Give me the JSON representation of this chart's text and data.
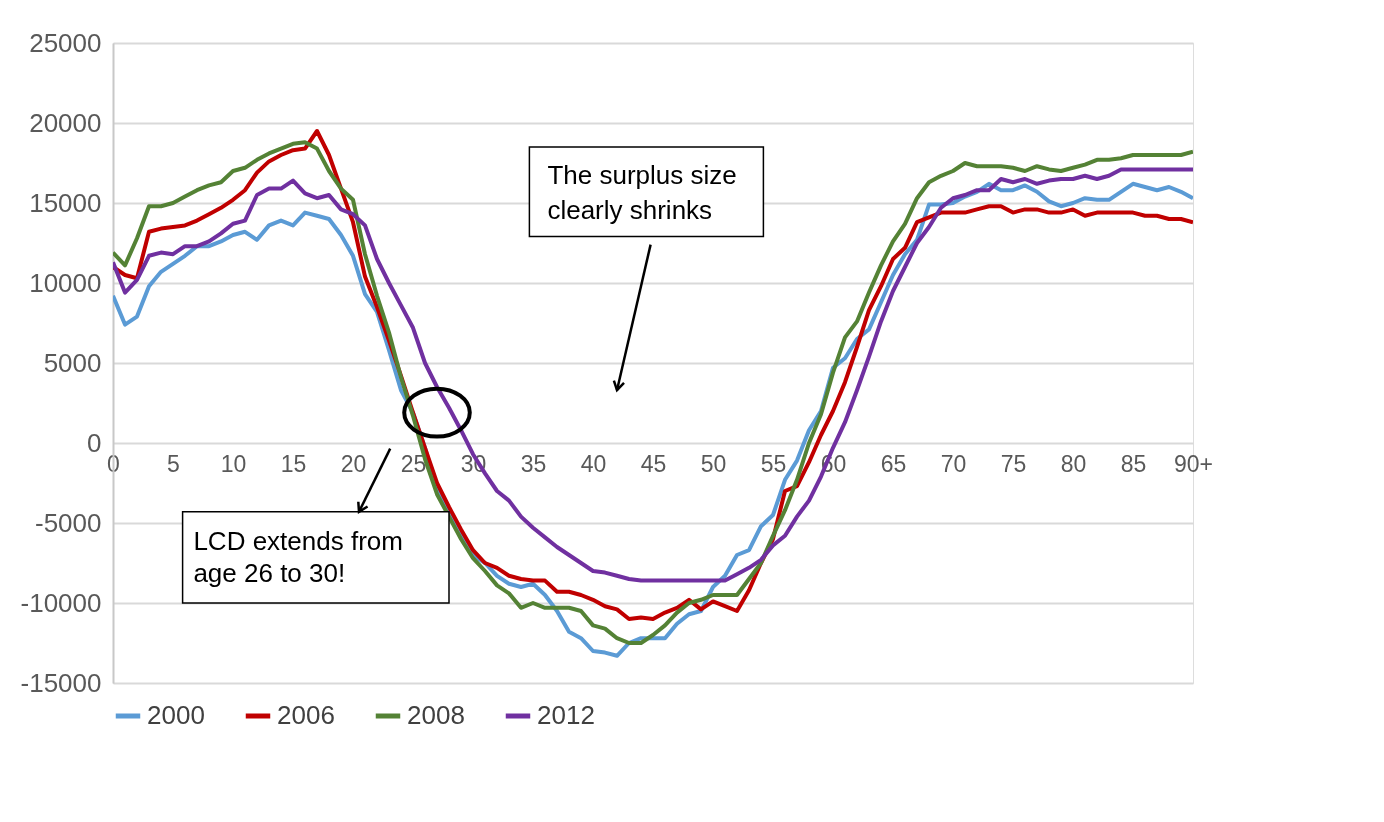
{
  "chart_data": {
    "type": "line",
    "categories": [
      "0",
      null,
      null,
      null,
      null,
      "5",
      null,
      null,
      null,
      null,
      "10",
      null,
      null,
      null,
      null,
      "15",
      null,
      null,
      null,
      null,
      "20",
      null,
      null,
      null,
      null,
      "25",
      null,
      null,
      null,
      null,
      "30",
      null,
      null,
      null,
      null,
      "35",
      null,
      null,
      null,
      null,
      "40",
      null,
      null,
      null,
      null,
      "45",
      null,
      null,
      null,
      null,
      "50",
      null,
      null,
      null,
      null,
      "55",
      null,
      null,
      null,
      null,
      "60",
      null,
      null,
      null,
      null,
      "65",
      null,
      null,
      null,
      null,
      "70",
      null,
      null,
      null,
      null,
      "75",
      null,
      null,
      null,
      null,
      "80",
      null,
      null,
      null,
      null,
      "85",
      null,
      null,
      null,
      null,
      "90+"
    ],
    "series": [
      {
        "name": "2000",
        "color": "#5b9bd5",
        "values": [
          9200,
          7400,
          7900,
          9800,
          10700,
          11200,
          11700,
          12300,
          12300,
          12600,
          13000,
          13200,
          12700,
          13600,
          13900,
          13600,
          14400,
          14200,
          14000,
          13000,
          11700,
          9300,
          8200,
          5800,
          3300,
          1900,
          -300,
          -2900,
          -4200,
          -5800,
          -7000,
          -7500,
          -8300,
          -8800,
          -9000,
          -8800,
          -9500,
          -10500,
          -11800,
          -12200,
          -13000,
          -13100,
          -13300,
          -12500,
          -12200,
          -12200,
          -12200,
          -11300,
          -10700,
          -10500,
          -9000,
          -8300,
          -7000,
          -6700,
          -5200,
          -4500,
          -2300,
          -1100,
          800,
          2000,
          4700,
          5300,
          6500,
          7100,
          8800,
          10500,
          11800,
          12700,
          14900,
          14900,
          15000,
          15400,
          15700,
          16200,
          15800,
          15800,
          16100,
          15700,
          15100,
          14800,
          15000,
          15300,
          15200,
          15200,
          15700,
          16200,
          16000,
          15800,
          16000,
          15700,
          15300
        ]
      },
      {
        "name": "2006",
        "color": "#c00000",
        "values": [
          11000,
          10500,
          10300,
          13200,
          13400,
          13500,
          13600,
          13900,
          14300,
          14700,
          15200,
          15800,
          16900,
          17600,
          18000,
          18300,
          18400,
          19500,
          18000,
          15900,
          13800,
          10400,
          8500,
          6400,
          4200,
          1900,
          -300,
          -2500,
          -4000,
          -5400,
          -6700,
          -7500,
          -7800,
          -8300,
          -8500,
          -8600,
          -8600,
          -9300,
          -9300,
          -9500,
          -9800,
          -10200,
          -10400,
          -11000,
          -10900,
          -11000,
          -10600,
          -10300,
          -9800,
          -10400,
          -9900,
          -10200,
          -10500,
          -9200,
          -7500,
          -6000,
          -3000,
          -2700,
          -1200,
          500,
          2000,
          3800,
          6000,
          8300,
          9800,
          11500,
          12200,
          13800,
          14100,
          14400,
          14400,
          14400,
          14600,
          14800,
          14800,
          14400,
          14600,
          14600,
          14400,
          14400,
          14600,
          14200,
          14400,
          14400,
          14400,
          14400,
          14200,
          14200,
          14000,
          14000,
          13800
        ]
      },
      {
        "name": "2008",
        "color": "#548235",
        "values": [
          11900,
          11100,
          12800,
          14800,
          14800,
          15000,
          15400,
          15800,
          16100,
          16300,
          17000,
          17200,
          17700,
          18100,
          18400,
          18700,
          18800,
          18400,
          17000,
          15900,
          15200,
          11800,
          9200,
          6900,
          4100,
          1700,
          -1000,
          -3200,
          -4600,
          -6000,
          -7200,
          -8000,
          -8900,
          -9400,
          -10300,
          -10000,
          -10300,
          -10300,
          -10300,
          -10500,
          -11400,
          -11600,
          -12200,
          -12500,
          -12500,
          -12000,
          -11400,
          -10600,
          -10000,
          -9800,
          -9500,
          -9500,
          -9500,
          -8500,
          -7500,
          -5800,
          -4200,
          -2300,
          0,
          1800,
          4400,
          6600,
          7600,
          9400,
          11100,
          12600,
          13700,
          15300,
          16300,
          16700,
          17000,
          17500,
          17300,
          17300,
          17300,
          17200,
          17000,
          17300,
          17100,
          17000,
          17200,
          17400,
          17700,
          17700,
          17800,
          18000,
          18000,
          18000,
          18000,
          18000,
          18200
        ]
      },
      {
        "name": "2012",
        "color": "#7030a0",
        "values": [
          11300,
          9400,
          10200,
          11700,
          11900,
          11800,
          12300,
          12300,
          12600,
          13100,
          13700,
          13900,
          15500,
          15900,
          15900,
          16400,
          15600,
          15300,
          15500,
          14600,
          14300,
          13600,
          11500,
          10000,
          8600,
          7200,
          5000,
          3500,
          2200,
          800,
          -700,
          -1900,
          -3000,
          -3600,
          -4600,
          -5300,
          -5900,
          -6500,
          -7000,
          -7500,
          -8000,
          -8100,
          -8300,
          -8500,
          -8600,
          -8600,
          -8600,
          -8600,
          -8600,
          -8600,
          -8600,
          -8600,
          -8200,
          -7800,
          -7300,
          -6400,
          -5800,
          -4600,
          -3600,
          -2100,
          -300,
          1300,
          3300,
          5400,
          7600,
          9500,
          11000,
          12500,
          13500,
          14700,
          15300,
          15500,
          15800,
          15800,
          16500,
          16300,
          16500,
          16200,
          16400,
          16500,
          16500,
          16700,
          16500,
          16700,
          17100,
          17100,
          17100,
          17100,
          17100,
          17100,
          17100
        ]
      }
    ],
    "ylim": [
      -15000,
      25000
    ],
    "yticks": [
      -15000,
      -10000,
      -5000,
      0,
      5000,
      10000,
      15000,
      20000,
      25000
    ],
    "grid": "y",
    "legend": "bottom",
    "marker": "none",
    "line_style": "solid",
    "annotations": [
      "The surplus size clearly shrinks",
      "LCD extends from age 26 to 30!"
    ]
  }
}
